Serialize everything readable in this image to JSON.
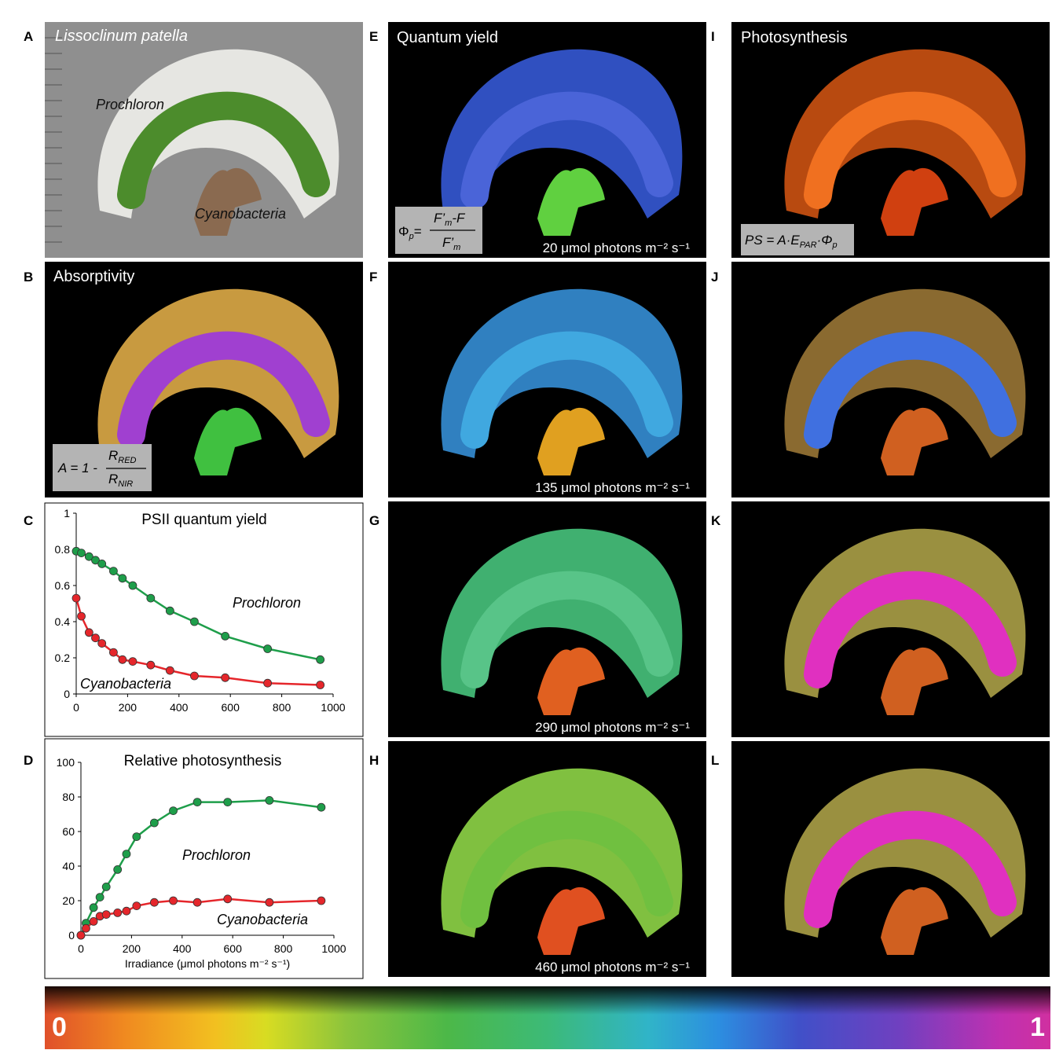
{
  "panel_letters": [
    "A",
    "B",
    "C",
    "D",
    "E",
    "F",
    "G",
    "H",
    "I",
    "J",
    "K",
    "L"
  ],
  "panel_a": {
    "title": "Lissoclinum patella",
    "label_prochloron": "Prochloron",
    "label_cyanobacteria": "Cyanobacteria"
  },
  "panel_b": {
    "title": "Absorptivity",
    "formula": {
      "lhs": "A = 1 -",
      "num": "R",
      "num_sub": "RED",
      "den": "R",
      "den_sub": "NIR"
    }
  },
  "panel_e": {
    "title": "Quantum yield",
    "formula": {
      "lhs": "Φ",
      "lhs_sub": "p",
      "eq": "=",
      "num": "F’",
      "num_sub": "m",
      "num_tail": "-F",
      "den": "F’",
      "den_sub": "m"
    }
  },
  "panel_i": {
    "title": "Photosynthesis",
    "formula": {
      "a": "PS = A·E",
      "a_sub": "PAR",
      "b": "·Φ",
      "b_sub": "p"
    }
  },
  "irradiance_labels": [
    "20 μmol photons m⁻² s⁻¹",
    "135 μmol photons m⁻² s⁻¹",
    "290 μmol photons m⁻² s⁻¹",
    "460 μmol photons m⁻² s⁻¹"
  ],
  "chart_data": [
    {
      "type": "line",
      "title": "PSII quantum yield",
      "x": [
        0,
        20,
        50,
        75,
        100,
        145,
        180,
        220,
        290,
        365,
        460,
        580,
        745,
        950
      ],
      "series": [
        {
          "name": "Prochloron",
          "color": "#1e9e4a",
          "values": [
            0.79,
            0.78,
            0.76,
            0.74,
            0.72,
            0.68,
            0.64,
            0.6,
            0.53,
            0.46,
            0.4,
            0.32,
            0.25,
            0.19
          ]
        },
        {
          "name": "Cyanobacteria",
          "color": "#e5262b",
          "values": [
            0.53,
            0.43,
            0.34,
            0.31,
            0.28,
            0.23,
            0.19,
            0.18,
            0.16,
            0.13,
            0.1,
            0.09,
            0.06,
            0.05
          ]
        }
      ],
      "xlim": [
        0,
        1000
      ],
      "xticks": [
        0,
        200,
        400,
        600,
        800,
        1000
      ],
      "ylim": [
        0,
        1
      ],
      "yticks": [
        0,
        0.2,
        0.4,
        0.6,
        0.8,
        1
      ]
    },
    {
      "type": "line",
      "title": "Relative photosynthesis",
      "xlabel": "Irradiance (μmol photons m⁻² s⁻¹)",
      "x": [
        0,
        20,
        50,
        75,
        100,
        145,
        180,
        220,
        290,
        365,
        460,
        580,
        745,
        950
      ],
      "series": [
        {
          "name": "Prochloron",
          "color": "#1e9e4a",
          "values": [
            0,
            7,
            16,
            22,
            28,
            38,
            47,
            57,
            65,
            72,
            77,
            77,
            78,
            74
          ]
        },
        {
          "name": "Cyanobacteria",
          "color": "#e5262b",
          "values": [
            0,
            4,
            8,
            11,
            12,
            13,
            14,
            17,
            19,
            20,
            19,
            21,
            19,
            20
          ]
        }
      ],
      "xlim": [
        0,
        1000
      ],
      "xticks": [
        0,
        200,
        400,
        600,
        800,
        1000
      ],
      "ylim": [
        0,
        100
      ],
      "yticks": [
        0,
        20,
        40,
        60,
        80,
        100
      ]
    }
  ],
  "colorbar": {
    "min_label": "0",
    "max_label": "1"
  }
}
